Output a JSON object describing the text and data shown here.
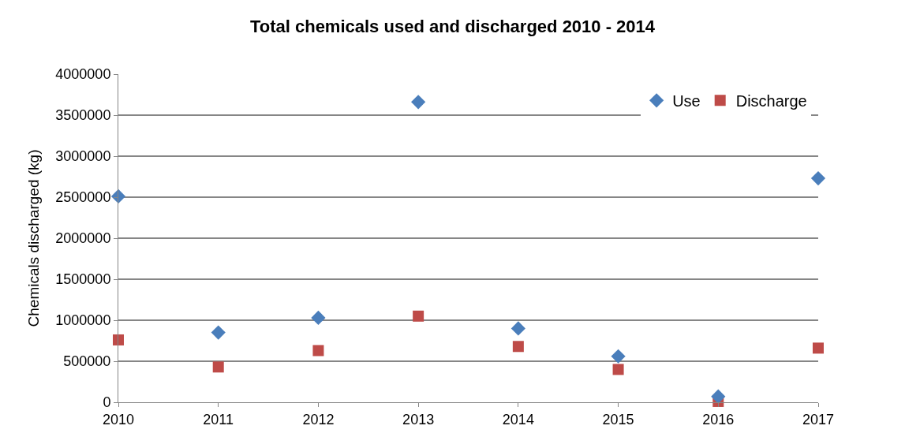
{
  "chart_data": {
    "type": "scatter",
    "title": "Total chemicals used and discharged 2010 - 2014",
    "ylabel": "Chemicals discharged (kg)",
    "x": [
      2010,
      2011,
      2012,
      2013,
      2014,
      2015,
      2016,
      2017
    ],
    "series": [
      {
        "name": "Use",
        "color": "#4a7ebb",
        "marker": "diamond",
        "values": [
          2510000,
          850000,
          1030000,
          3660000,
          900000,
          560000,
          70000,
          2730000
        ]
      },
      {
        "name": "Discharge",
        "color": "#be4b48",
        "marker": "square",
        "values": [
          760000,
          430000,
          630000,
          1050000,
          680000,
          400000,
          10000,
          660000
        ]
      }
    ],
    "xlim": [
      2010,
      2017
    ],
    "xticks": [
      2010,
      2011,
      2012,
      2013,
      2014,
      2015,
      2016,
      2017
    ],
    "ylim": [
      0,
      4000000
    ],
    "yticks": [
      0,
      500000,
      1000000,
      1500000,
      2000000,
      2500000,
      3000000,
      3500000,
      4000000
    ],
    "grid": "y",
    "legend": "top right"
  }
}
